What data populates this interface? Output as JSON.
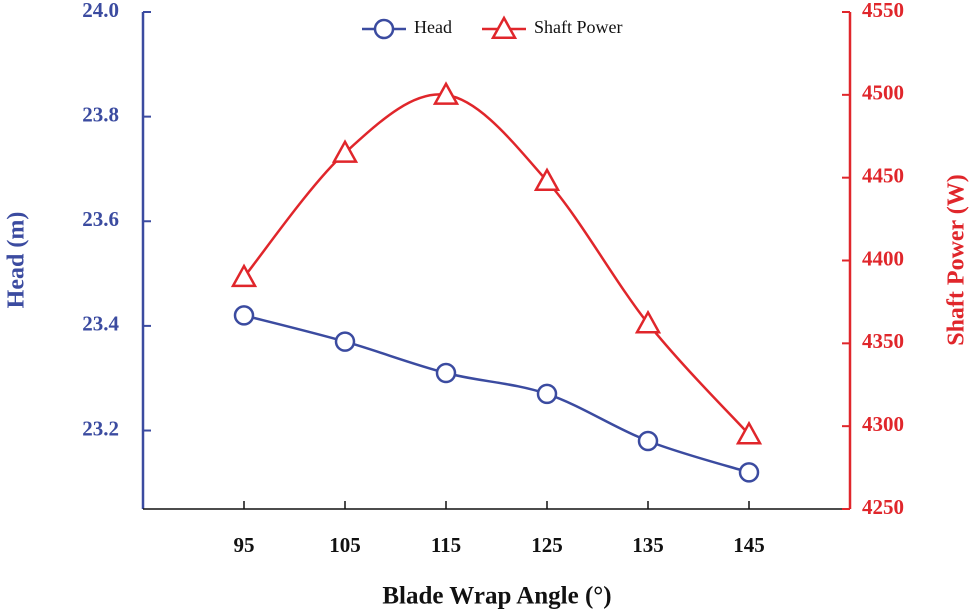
{
  "chart_data": {
    "type": "line",
    "x_label": "Blade Wrap Angle (°)",
    "y_label": "Head (m)",
    "y2_label": "Shaft Power (W)",
    "x": [
      95,
      105,
      115,
      125,
      135,
      145
    ],
    "xlim": [
      85,
      155
    ],
    "xticks": [
      95,
      105,
      115,
      125,
      135,
      145
    ],
    "ylim": [
      23.05,
      24.0
    ],
    "yticks": [
      23.2,
      23.4,
      23.6,
      23.8,
      {
        "value": 24.0,
        "label": "24.0"
      }
    ],
    "y2lim": [
      4250,
      4550
    ],
    "y2ticks": [
      4250,
      4300,
      4350,
      4400,
      4450,
      4500,
      4550
    ],
    "series": [
      {
        "name": "Head",
        "color": "#3b4ba0",
        "marker": "circle",
        "values": [
          23.42,
          23.37,
          23.31,
          23.27,
          23.18,
          23.12
        ]
      },
      {
        "name": "Shaft Power",
        "color": "#e0262b",
        "marker": "triangle",
        "axis": "y2",
        "values": [
          4390,
          4465,
          4500,
          4448,
          4362,
          4295
        ]
      }
    ]
  }
}
